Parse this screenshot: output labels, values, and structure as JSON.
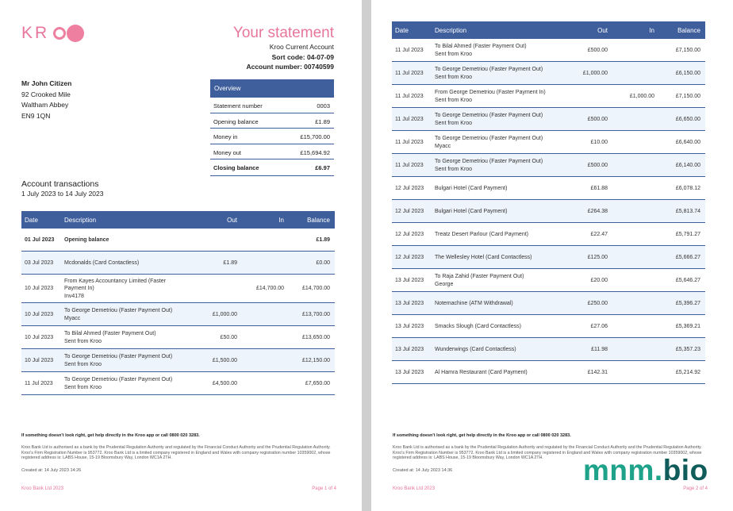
{
  "logo": "KR",
  "statement": {
    "title": "Your statement",
    "account_type": "Kroo Current Account",
    "sort_code": "Sort code: 04-07-09",
    "account_number": "Account number: 00740599"
  },
  "address": [
    "Mr John Citizen",
    "92 Crooked Mile",
    "Waltham Abbey",
    "EN9 1QN"
  ],
  "overview": {
    "title": "Overview",
    "rows": [
      [
        "Statement number",
        "0003"
      ],
      [
        "Opening balance",
        "£1.89"
      ],
      [
        "Money in",
        "£15,700.00"
      ],
      [
        "Money out",
        "£15,694.92"
      ],
      [
        "Closing balance",
        "£6.97"
      ]
    ]
  },
  "transactions_heading": {
    "title": "Account transactions",
    "period": "1 July 2023 to 14 July 2023"
  },
  "table_header": [
    "Date",
    "Description",
    "Out",
    "In",
    "Balance"
  ],
  "footer": {
    "help": "If something doesn't look right, get help directly in the Kroo app or call 0800 020 3283.",
    "legal": "Kroo Bank Ltd is authorised as a bank by the Prudential Regulation Authority and regulated by the Financial Conduct Authority and the Prudential Regulation Authority. Kroo's Firm Registration Number is 953772. Kroo Bank Ltd is a limited company registered in England and Wales with company registration number 10359002, whose registered address is: LABS House, 15-19 Bloomsbury Way, London WC1A 2TH.",
    "company": "Kroo Bank Ltd 2023"
  },
  "pages": [
    {
      "created": "Created at: 14 July 2023 14:26",
      "page_label": "Page 1 of 4",
      "rows": [
        {
          "date": "01 Jul 2023",
          "description": [
            "Opening balance"
          ],
          "balance": "£1.89",
          "bold": true
        },
        {
          "date": "03 Jul 2023",
          "description": [
            "Mcdonalds (Card Contactless)"
          ],
          "out": "£1.89",
          "balance": "£0.00"
        },
        {
          "date": "10 Jul 2023",
          "description": [
            "From Kayes Accountancy Limited (Faster",
            "Payment In)",
            "Inv4178"
          ],
          "in": "£14,700.00",
          "balance": "£14,700.00"
        },
        {
          "date": "10 Jul 2023",
          "description": [
            "To George Demetriou (Faster Payment Out)",
            "Myacc"
          ],
          "out": "£1,000.00",
          "balance": "£13,700.00"
        },
        {
          "date": "10 Jul 2023",
          "description": [
            "To Bilal Ahmed (Faster Payment Out)",
            "Sent from Kroo"
          ],
          "out": "£50.00",
          "balance": "£13,650.00"
        },
        {
          "date": "10 Jul 2023",
          "description": [
            "To George Demetriou (Faster Payment Out)",
            "Sent from Kroo"
          ],
          "out": "£1,500.00",
          "balance": "£12,150.00"
        },
        {
          "date": "11 Jul 2023",
          "description": [
            "To George Demetriou (Faster Payment Out)",
            "Sent from Kroo"
          ],
          "out": "£4,500.00",
          "balance": "£7,650.00"
        }
      ]
    },
    {
      "created": "Created at: 14 July 2023 14:36",
      "page_label": "Page 2 of 4",
      "rows": [
        {
          "date": "11 Jul 2023",
          "description": [
            "To Bilal Ahmed (Faster Payment Out)",
            "Sent from Kroo"
          ],
          "out": "£500.00",
          "balance": "£7,150.00"
        },
        {
          "date": "11 Jul 2023",
          "description": [
            "To George Demetriou (Faster Payment Out)",
            "Sent from Kroo"
          ],
          "out": "£1,000.00",
          "balance": "£6,150.00"
        },
        {
          "date": "11 Jul 2023",
          "description": [
            "From George Demetriou (Faster Payment In)",
            "Sent from Kroo"
          ],
          "in": "£1,000.00",
          "balance": "£7,150.00"
        },
        {
          "date": "11 Jul 2023",
          "description": [
            "To George Demetriou (Faster Payment Out)",
            "Sent from Kroo"
          ],
          "out": "£500.00",
          "balance": "£6,650.00"
        },
        {
          "date": "11 Jul 2023",
          "description": [
            "To George Demetriou (Faster Payment Out)",
            "Myacc"
          ],
          "out": "£10.00",
          "balance": "£6,640.00"
        },
        {
          "date": "11 Jul 2023",
          "description": [
            "To George Demetriou (Faster Payment Out)",
            "Sent from Kroo"
          ],
          "out": "£500.00",
          "balance": "£6,140.00"
        },
        {
          "date": "12 Jul 2023",
          "description": [
            "Bulgari Hotel (Card Payment)"
          ],
          "out": "£61.88",
          "balance": "£6,078.12"
        },
        {
          "date": "12 Jul 2023",
          "description": [
            "Bulgari Hotel (Card Payment)"
          ],
          "out": "£264.38",
          "balance": "£5,813.74"
        },
        {
          "date": "12 Jul 2023",
          "description": [
            "Treatz Desert Parlour (Card Payment)"
          ],
          "out": "£22.47",
          "balance": "£5,791.27"
        },
        {
          "date": "12 Jul 2023",
          "description": [
            "The Wellesley Hotel (Card Contactless)"
          ],
          "out": "£125.00",
          "balance": "£5,666.27"
        },
        {
          "date": "13 Jul 2023",
          "description": [
            "To Raja Zahid (Faster Payment Out)",
            "George"
          ],
          "out": "£20.00",
          "balance": "£5,646.27"
        },
        {
          "date": "13 Jul 2023",
          "description": [
            "Notemachine (ATM Withdrawal)"
          ],
          "out": "£250.00",
          "balance": "£5,396.27"
        },
        {
          "date": "13 Jul 2023",
          "description": [
            "Smacks Slough (Card Contactless)"
          ],
          "out": "£27.06",
          "balance": "£5,369.21"
        },
        {
          "date": "13 Jul 2023",
          "description": [
            "Wunderwings (Card Contactless)"
          ],
          "out": "£11.98",
          "balance": "£5,357.23"
        },
        {
          "date": "13 Jul 2023",
          "description": [
            "Al Hamra Restaurant (Card Payment)"
          ],
          "out": "£142.31",
          "balance": "£5,214.92"
        }
      ]
    }
  ],
  "watermark": [
    "mnm.",
    "bio"
  ]
}
